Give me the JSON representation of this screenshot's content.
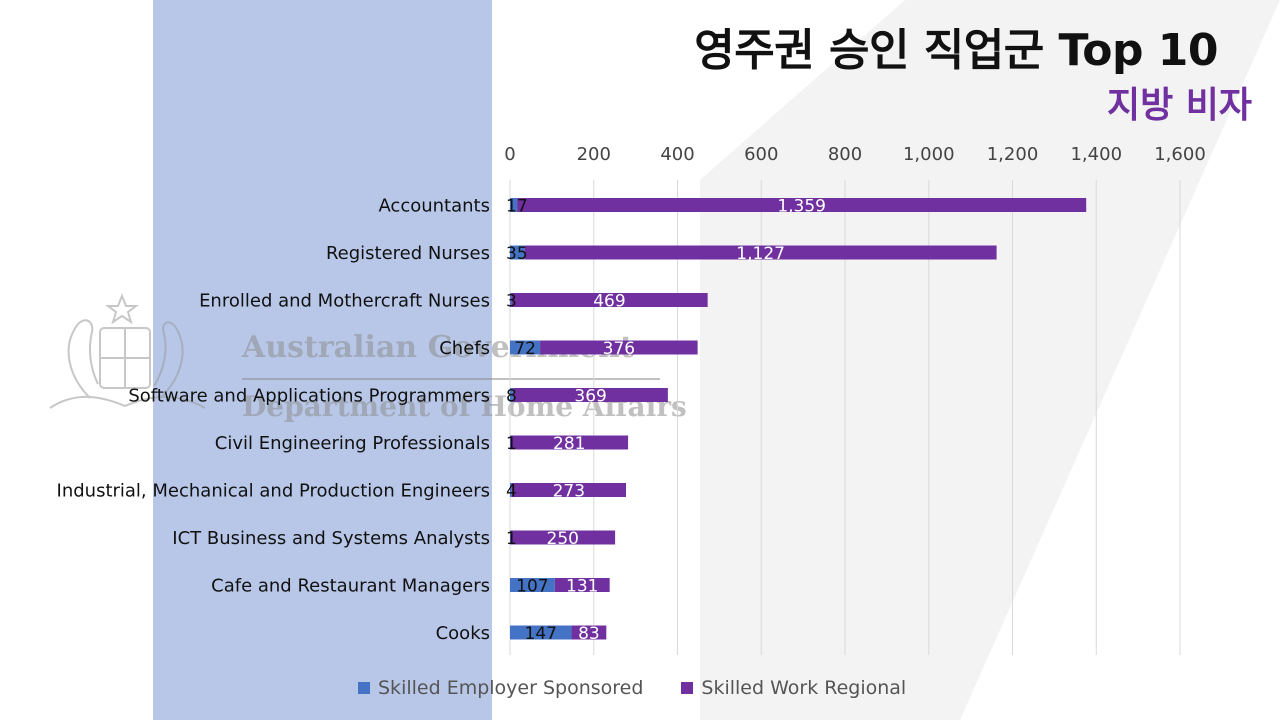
{
  "title": "영주권 승인 직업군 Top 10",
  "subtitle": "지방 비자",
  "watermark": {
    "line1": "Australian Government",
    "line2": "Department of Home Affairs"
  },
  "colors": {
    "employer": "#4472c4",
    "regional": "#7030a0",
    "panel": "#b8c7e8",
    "title": "#111111",
    "subtitle": "#7030a0"
  },
  "chart_data": {
    "type": "bar",
    "orientation": "horizontal",
    "stacked": true,
    "categories": [
      "Accountants",
      "Registered Nurses",
      "Enrolled and Mothercraft Nurses",
      "Chefs",
      "Software and Applications Programmers",
      "Civil Engineering Professionals",
      "Industrial, Mechanical and Production Engineers",
      "ICT Business and Systems Analysts",
      "Cafe and Restaurant Managers",
      "Cooks"
    ],
    "series": [
      {
        "name": "Skilled Employer Sponsored",
        "values": [
          17,
          35,
          3,
          72,
          8,
          1,
          4,
          1,
          107,
          147
        ],
        "labels": [
          "17",
          "35",
          "3",
          "72",
          "8",
          "1",
          "4",
          "1",
          "107",
          "147"
        ]
      },
      {
        "name": "Skilled Work Regional",
        "values": [
          1359,
          1127,
          469,
          376,
          369,
          281,
          273,
          250,
          131,
          83
        ],
        "labels": [
          "1,359",
          "1,127",
          "469",
          "376",
          "369",
          "281",
          "273",
          "250",
          "131",
          "83"
        ]
      }
    ],
    "xlim": [
      0,
      1600
    ],
    "xticks": [
      0,
      200,
      400,
      600,
      800,
      1000,
      1200,
      1400,
      1600
    ],
    "xtick_labels": [
      "0",
      "200",
      "400",
      "600",
      "800",
      "1,000",
      "1,200",
      "1,400",
      "1,600"
    ],
    "x_axis_position": "top",
    "grid": true,
    "legend": "bottom"
  }
}
